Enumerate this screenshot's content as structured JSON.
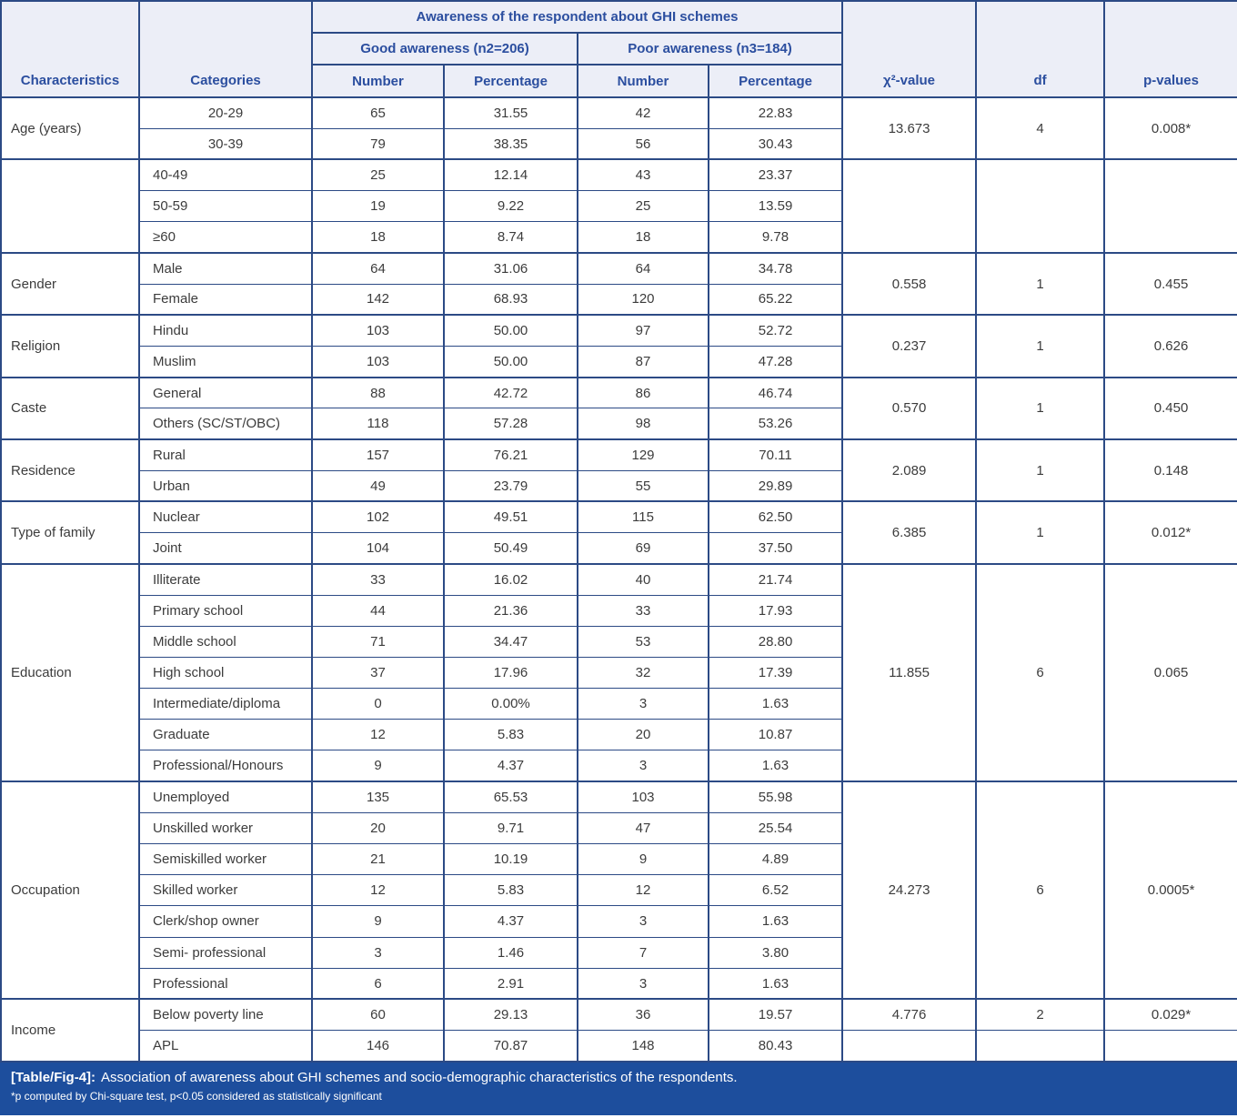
{
  "table": {
    "header": {
      "characteristics": "Characteristics",
      "categories": "Categories",
      "awareness_group": "Awareness of the respondent about GHI schemes",
      "good": "Good awareness (n2=206)",
      "poor": "Poor awareness (n3=184)",
      "number": "Number",
      "percentage": "Percentage",
      "chi_square": "χ²-value",
      "df": "df",
      "p_values": "p-values"
    },
    "blocks": [
      {
        "characteristic": "Age (years)",
        "centered_categories": true,
        "rows": [
          {
            "category": "20-29",
            "good_n": "65",
            "good_pct": "31.55",
            "poor_n": "42",
            "poor_pct": "22.83"
          },
          {
            "category": "30-39",
            "good_n": "79",
            "good_pct": "38.35",
            "poor_n": "56",
            "poor_pct": "30.43"
          }
        ],
        "chi_square": "13.673",
        "df": "4",
        "p_value": "0.008*"
      },
      {
        "characteristic": "",
        "rows": [
          {
            "category": "40-49",
            "good_n": "25",
            "good_pct": "12.14",
            "poor_n": "43",
            "poor_pct": "23.37"
          },
          {
            "category": "50-59",
            "good_n": "19",
            "good_pct": "9.22",
            "poor_n": "25",
            "poor_pct": "13.59"
          },
          {
            "category": "≥60",
            "good_n": "18",
            "good_pct": "8.74",
            "poor_n": "18",
            "poor_pct": "9.78"
          }
        ],
        "chi_square": "",
        "df": "",
        "p_value": ""
      },
      {
        "characteristic": "Gender",
        "rows": [
          {
            "category": "Male",
            "good_n": "64",
            "good_pct": "31.06",
            "poor_n": "64",
            "poor_pct": "34.78"
          },
          {
            "category": "Female",
            "good_n": "142",
            "good_pct": "68.93",
            "poor_n": "120",
            "poor_pct": "65.22"
          }
        ],
        "chi_square": "0.558",
        "df": "1",
        "p_value": "0.455"
      },
      {
        "characteristic": "Religion",
        "rows": [
          {
            "category": "Hindu",
            "good_n": "103",
            "good_pct": "50.00",
            "poor_n": "97",
            "poor_pct": "52.72"
          },
          {
            "category": "Muslim",
            "good_n": "103",
            "good_pct": "50.00",
            "poor_n": "87",
            "poor_pct": "47.28"
          }
        ],
        "chi_square": "0.237",
        "df": "1",
        "p_value": "0.626"
      },
      {
        "characteristic": "Caste",
        "rows": [
          {
            "category": "General",
            "good_n": "88",
            "good_pct": "42.72",
            "poor_n": "86",
            "poor_pct": "46.74"
          },
          {
            "category": "Others (SC/ST/OBC)",
            "good_n": "118",
            "good_pct": "57.28",
            "poor_n": "98",
            "poor_pct": "53.26"
          }
        ],
        "chi_square": "0.570",
        "df": "1",
        "p_value": "0.450"
      },
      {
        "characteristic": "Residence",
        "rows": [
          {
            "category": "Rural",
            "good_n": "157",
            "good_pct": "76.21",
            "poor_n": "129",
            "poor_pct": "70.11"
          },
          {
            "category": "Urban",
            "good_n": "49",
            "good_pct": "23.79",
            "poor_n": "55",
            "poor_pct": "29.89"
          }
        ],
        "chi_square": "2.089",
        "df": "1",
        "p_value": "0.148"
      },
      {
        "characteristic": "Type of family",
        "rows": [
          {
            "category": "Nuclear",
            "good_n": "102",
            "good_pct": "49.51",
            "poor_n": "115",
            "poor_pct": "62.50"
          },
          {
            "category": "Joint",
            "good_n": "104",
            "good_pct": "50.49",
            "poor_n": "69",
            "poor_pct": "37.50"
          }
        ],
        "chi_square": "6.385",
        "df": "1",
        "p_value": "0.012*"
      },
      {
        "characteristic": "Education",
        "rows": [
          {
            "category": "Illiterate",
            "good_n": "33",
            "good_pct": "16.02",
            "poor_n": "40",
            "poor_pct": "21.74"
          },
          {
            "category": "Primary school",
            "good_n": "44",
            "good_pct": "21.36",
            "poor_n": "33",
            "poor_pct": "17.93"
          },
          {
            "category": "Middle school",
            "good_n": "71",
            "good_pct": "34.47",
            "poor_n": "53",
            "poor_pct": "28.80"
          },
          {
            "category": "High school",
            "good_n": "37",
            "good_pct": "17.96",
            "poor_n": "32",
            "poor_pct": "17.39"
          },
          {
            "category": "Intermediate/diploma",
            "good_n": "0",
            "good_pct": "0.00%",
            "poor_n": "3",
            "poor_pct": "1.63"
          },
          {
            "category": "Graduate",
            "good_n": "12",
            "good_pct": "5.83",
            "poor_n": "20",
            "poor_pct": "10.87"
          },
          {
            "category": "Professional/Honours",
            "good_n": "9",
            "good_pct": "4.37",
            "poor_n": "3",
            "poor_pct": "1.63"
          }
        ],
        "chi_square": "11.855",
        "df": "6",
        "p_value": "0.065"
      },
      {
        "characteristic": "Occupation",
        "rows": [
          {
            "category": "Unemployed",
            "good_n": "135",
            "good_pct": "65.53",
            "poor_n": "103",
            "poor_pct": "55.98"
          },
          {
            "category": "Unskilled worker",
            "good_n": "20",
            "good_pct": "9.71",
            "poor_n": "47",
            "poor_pct": "25.54"
          },
          {
            "category": "Semiskilled worker",
            "good_n": "21",
            "good_pct": "10.19",
            "poor_n": "9",
            "poor_pct": "4.89"
          },
          {
            "category": "Skilled worker",
            "good_n": "12",
            "good_pct": "5.83",
            "poor_n": "12",
            "poor_pct": "6.52"
          },
          {
            "category": "Clerk/shop owner",
            "good_n": "9",
            "good_pct": "4.37",
            "poor_n": "3",
            "poor_pct": "1.63"
          },
          {
            "category": "Semi- professional",
            "good_n": "3",
            "good_pct": "1.46",
            "poor_n": "7",
            "poor_pct": "3.80"
          },
          {
            "category": "Professional",
            "good_n": "6",
            "good_pct": "2.91",
            "poor_n": "3",
            "poor_pct": "1.63"
          }
        ],
        "chi_square": "24.273",
        "df": "6",
        "p_value": "0.0005*"
      },
      {
        "characteristic": "Income",
        "stats_rows": 1,
        "rows": [
          {
            "category": "Below poverty line",
            "good_n": "60",
            "good_pct": "29.13",
            "poor_n": "36",
            "poor_pct": "19.57"
          },
          {
            "category": "APL",
            "good_n": "146",
            "good_pct": "70.87",
            "poor_n": "148",
            "poor_pct": "80.43"
          }
        ],
        "chi_square": "4.776",
        "df": "2",
        "p_value": "0.029*"
      }
    ]
  },
  "footer": {
    "label": "[Table/Fig-4]:",
    "caption": "Association of awareness about GHI schemes and socio-demographic characteristics of the respondents.",
    "note": "*p computed by Chi-square test, p<0.05 considered as statistically significant"
  },
  "colors": {
    "line": "#2c4a85",
    "header-bg": "#eceef7",
    "header-text": "#2b4e9f",
    "body-text": "#3c3c3c",
    "footer-bg": "#1d4e9d",
    "footer-text": "#ffffff"
  }
}
